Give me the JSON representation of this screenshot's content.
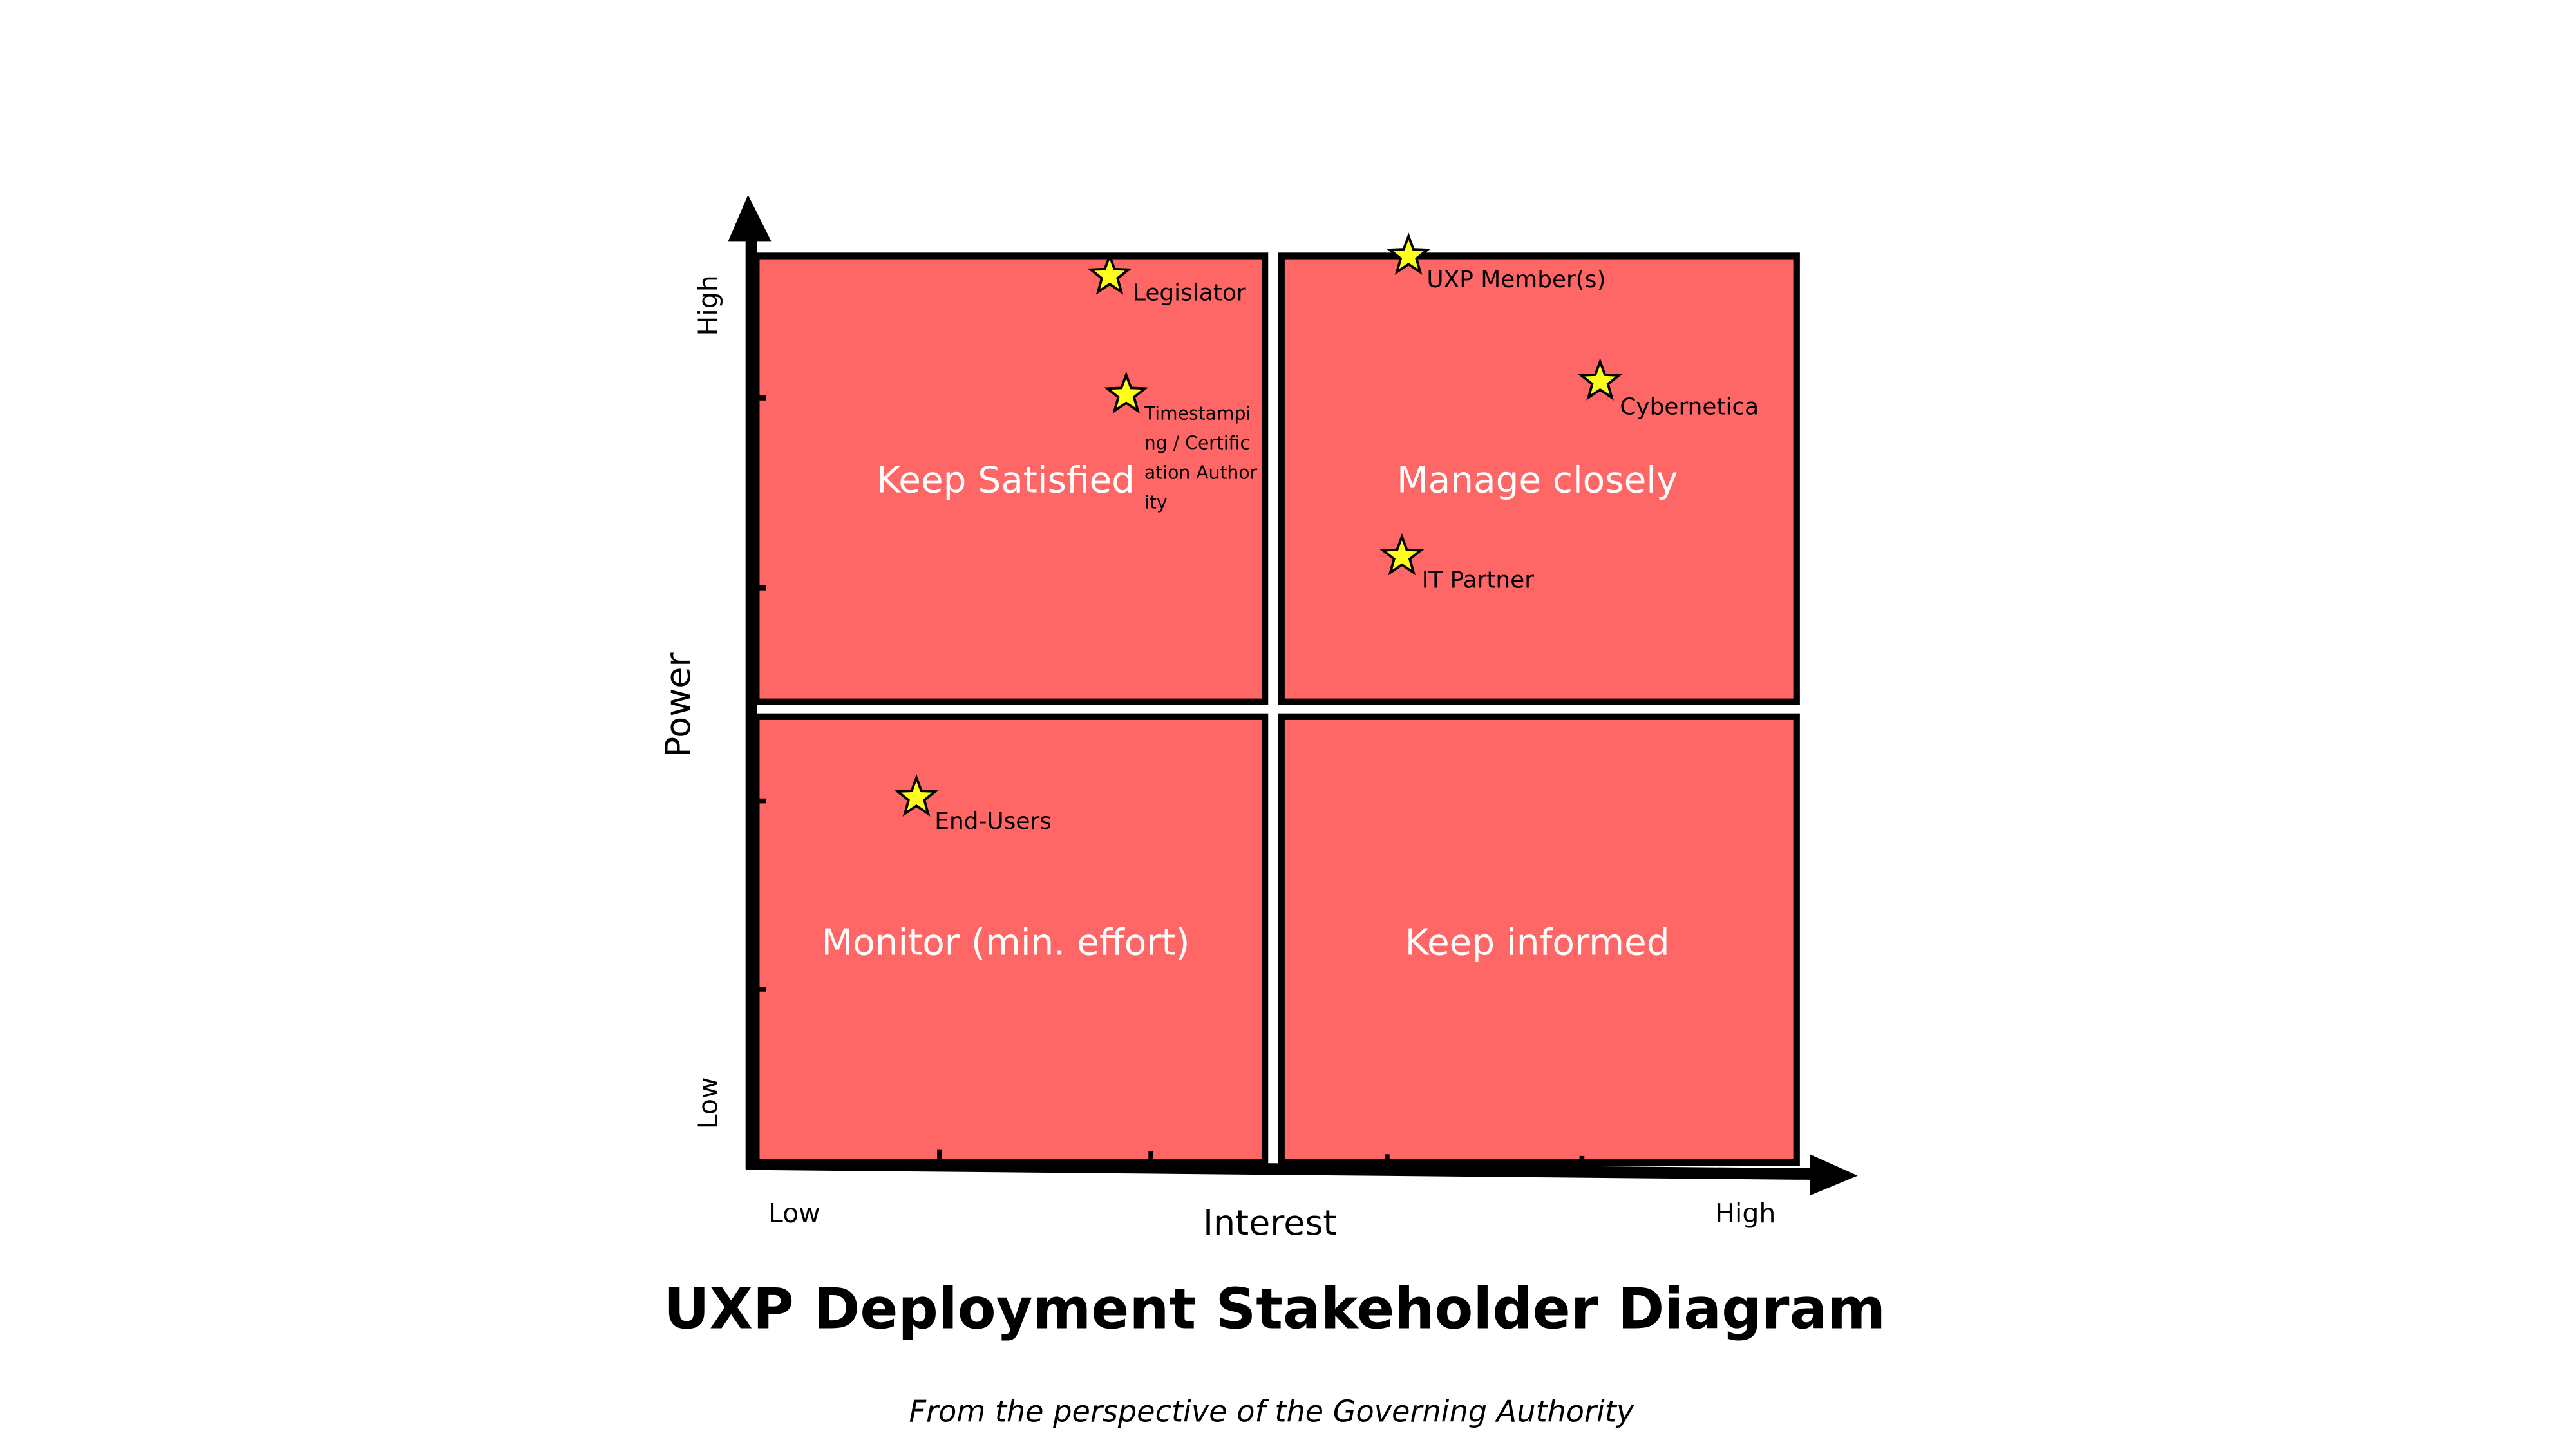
{
  "title": "UXP Deployment Stakeholder Diagram",
  "subtitle": "From the perspective of the Governing Authority",
  "axes": {
    "x": {
      "label": "Interest",
      "low": "Low",
      "high": "High"
    },
    "y": {
      "label": "Power",
      "low": "Low",
      "high": "High"
    }
  },
  "quadrants": [
    {
      "label": "Keep Satisfied"
    },
    {
      "label": "Manage closely"
    },
    {
      "label": "Monitor (min. effort)"
    },
    {
      "label": "Keep informed"
    }
  ],
  "stakeholders": [
    {
      "label": "Legislator"
    },
    {
      "label": "Timestamping / Certification Authority"
    },
    {
      "label": "UXP Member(s)"
    },
    {
      "label": "Cybernetica"
    },
    {
      "label": "IT Partner"
    },
    {
      "label": "End-Users"
    }
  ]
}
